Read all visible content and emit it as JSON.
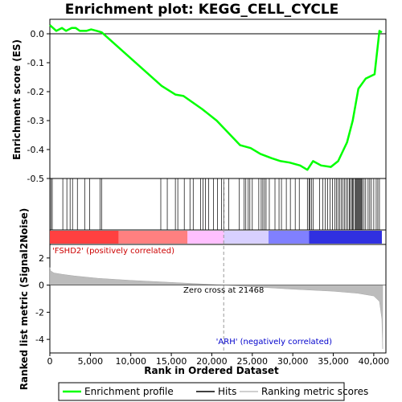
{
  "chart_data": [
    {
      "type": "line",
      "title": "Enrichment plot: KEGG_CELL_CYCLE",
      "ylabel": "Enrichment score (ES)",
      "xlim": [
        0,
        41500
      ],
      "ylim": [
        -0.5,
        0.05
      ],
      "y_ticks": [
        "0.0",
        "-0.1",
        "-0.2",
        "-0.3",
        "-0.4",
        "-0.5"
      ],
      "grid": false,
      "series": [
        {
          "name": "Enrichment profile",
          "color": "#00ff00",
          "x": [
            0,
            800,
            1500,
            2000,
            2700,
            3200,
            3700,
            4500,
            5100,
            5800,
            6400,
            13800,
            15500,
            16500,
            18800,
            20600,
            23500,
            24800,
            26000,
            27400,
            28500,
            29600,
            30900,
            31800,
            32500,
            33500,
            34700,
            35600,
            36700,
            37400,
            38100,
            39000,
            40100,
            40700,
            41000
          ],
          "y": [
            0.03,
            0.01,
            0.02,
            0.01,
            0.02,
            0.02,
            0.01,
            0.01,
            0.015,
            0.01,
            0.005,
            -0.18,
            -0.21,
            -0.215,
            -0.26,
            -0.3,
            -0.385,
            -0.395,
            -0.415,
            -0.43,
            -0.44,
            -0.445,
            -0.455,
            -0.47,
            -0.44,
            -0.455,
            -0.46,
            -0.44,
            -0.375,
            -0.3,
            -0.19,
            -0.155,
            -0.14,
            0.01,
            0.005
          ]
        }
      ]
    },
    {
      "type": "hits",
      "ylabel": "",
      "series": [
        {
          "name": "Hits",
          "color": "#000000",
          "x": [
            150,
            300,
            1600,
            2100,
            2500,
            2800,
            3400,
            4300,
            4900,
            6200,
            6400,
            13700,
            14500,
            15500,
            15800,
            16600,
            17300,
            17700,
            18600,
            18900,
            19200,
            19600,
            20200,
            20700,
            21200,
            21500,
            22100,
            23400,
            24000,
            24200,
            24500,
            24700,
            25000,
            25800,
            26100,
            26300,
            26500,
            26700,
            27100,
            27800,
            28300,
            28600,
            29200,
            29700,
            30300,
            30800,
            31800,
            32000,
            32100,
            32300,
            32500,
            33300,
            33700,
            34000,
            34300,
            34600,
            34900,
            35200,
            35400,
            35600,
            35800,
            36000,
            36200,
            36400,
            36600,
            36800,
            37000,
            37100,
            37300,
            37400,
            37500,
            37700,
            37800,
            37900,
            38000,
            38100,
            38200,
            38300,
            38400,
            38500,
            38600,
            38800,
            39000,
            39300,
            39500,
            39700,
            40000,
            40300,
            40500,
            40700
          ]
        }
      ]
    },
    {
      "type": "heatmap",
      "ylabel": "",
      "colors": [
        "#ff4040",
        "#ff8080",
        "#ffc0ff",
        "#d8d0ff",
        "#8080ff",
        "#3030e0"
      ],
      "stops": [
        0,
        8500,
        17000,
        21500,
        27000,
        32000,
        41000
      ]
    },
    {
      "type": "area",
      "xlabel": "Rank in Ordered Dataset",
      "ylabel": "Ranked list metric (Signal2Noise)",
      "ylim": [
        -5,
        3
      ],
      "y_ticks": [
        "2",
        "0",
        "-2",
        "-4"
      ],
      "x_ticks": [
        "0",
        "5,000",
        "10,000",
        "15,000",
        "20,000",
        "25,000",
        "30,000",
        "35,000",
        "40,000"
      ],
      "zero_cross_label": "Zero cross at 21468",
      "positive_label": "'FSHD2' (positively correlated)",
      "negative_label": "'ARH' (negatively correlated)",
      "series": [
        {
          "name": "Ranking metric scores",
          "color": "#c0c0c0",
          "x": [
            0,
            100,
            500,
            1500,
            3000,
            6000,
            10000,
            15000,
            19000,
            21468,
            25000,
            30000,
            35000,
            38000,
            40000,
            40700,
            41000,
            41100
          ],
          "y": [
            1.3,
            1.05,
            0.9,
            0.8,
            0.68,
            0.5,
            0.35,
            0.2,
            0.08,
            0.0,
            -0.12,
            -0.3,
            -0.45,
            -0.6,
            -0.8,
            -1.2,
            -2.5,
            -4.7
          ]
        }
      ]
    }
  ],
  "legend": {
    "items": [
      {
        "label": "Enrichment profile",
        "color": "#00ff00"
      },
      {
        "label": "Hits",
        "color": "#000000"
      },
      {
        "label": "Ranking metric scores",
        "color": "#c0c0c0"
      }
    ]
  }
}
